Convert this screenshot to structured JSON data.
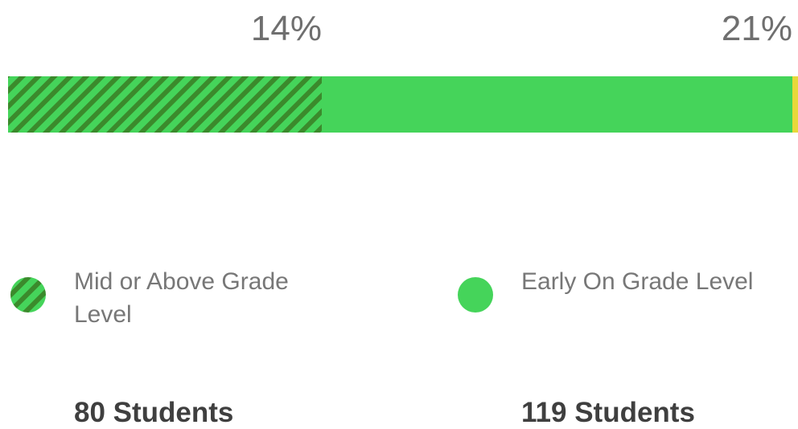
{
  "chart_data": {
    "type": "stacked-bar",
    "series": [
      {
        "name": "Mid or Above Grade Level",
        "color": "#45d45a",
        "pattern": "hatch",
        "values": [
          14
        ],
        "value_labels": [
          "14%"
        ],
        "count_label": "80 Students"
      },
      {
        "name": "Early On Grade Level",
        "color": "#45d45a",
        "pattern": "solid",
        "values": [
          21
        ],
        "value_labels": [
          "21%"
        ],
        "count_label": "119 Students"
      }
    ]
  }
}
